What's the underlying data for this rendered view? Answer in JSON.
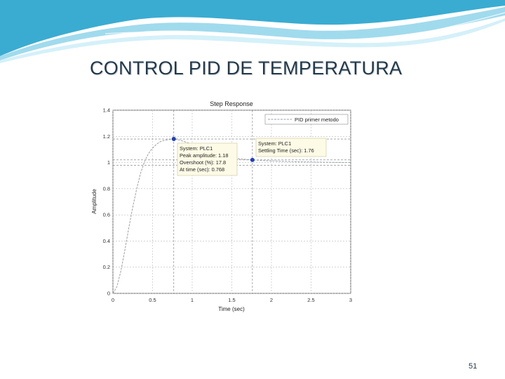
{
  "slide": {
    "title": "CONTROL PID DE TEMPERATURA",
    "page_number": "51",
    "accent_colors": [
      "#2fa8cf",
      "#8fd4ea",
      "#cfeef8"
    ]
  },
  "chart_data": {
    "type": "line",
    "title": "Step Response",
    "xlabel": "Time (sec)",
    "ylabel": "Amplitude",
    "xlim": [
      0,
      3
    ],
    "ylim": [
      0,
      1.4
    ],
    "x_ticks": [
      "0",
      "0.5",
      "1",
      "1.5",
      "2",
      "2.5",
      "3"
    ],
    "y_ticks": [
      "0",
      "0.2",
      "0.4",
      "0.6",
      "0.8",
      "1",
      "1.2",
      "1.4"
    ],
    "grid": true,
    "legend_position": "top-right",
    "series": [
      {
        "name": "PID primer metodo",
        "color": "#9aa0a6",
        "x": [
          0,
          0.05,
          0.1,
          0.15,
          0.2,
          0.25,
          0.3,
          0.35,
          0.4,
          0.45,
          0.5,
          0.55,
          0.6,
          0.65,
          0.7,
          0.768,
          0.85,
          0.95,
          1.05,
          1.15,
          1.25,
          1.35,
          1.45,
          1.55,
          1.65,
          1.76,
          1.9,
          2.1,
          2.3,
          2.5,
          2.7,
          3.0
        ],
        "y": [
          0,
          0.05,
          0.17,
          0.33,
          0.5,
          0.66,
          0.8,
          0.92,
          1.01,
          1.07,
          1.11,
          1.14,
          1.16,
          1.17,
          1.175,
          1.18,
          1.17,
          1.15,
          1.12,
          1.09,
          1.07,
          1.05,
          1.04,
          1.03,
          1.025,
          1.02,
          1.015,
          1.01,
          1.006,
          1.004,
          1.002,
          1.0
        ]
      }
    ],
    "markers": [
      {
        "x": 0.768,
        "y": 1.18,
        "color": "#1f3fbf"
      },
      {
        "x": 1.76,
        "y": 1.02,
        "color": "#1f3fbf"
      }
    ],
    "reference_lines": [
      {
        "axis": "y",
        "value": 1.18
      },
      {
        "axis": "y",
        "value": 1.02
      },
      {
        "axis": "y",
        "value": 0.98
      },
      {
        "axis": "x",
        "value": 0.768
      },
      {
        "axis": "x",
        "value": 1.76
      }
    ],
    "annotations": [
      {
        "lines": [
          "System: PLC1",
          "Peak amplitude: 1.18",
          "Overshoot (%): 17.8",
          "At time (sec): 0.768"
        ]
      },
      {
        "lines": [
          "System: PLC1",
          "Settling Time (sec): 1.76"
        ]
      }
    ]
  }
}
